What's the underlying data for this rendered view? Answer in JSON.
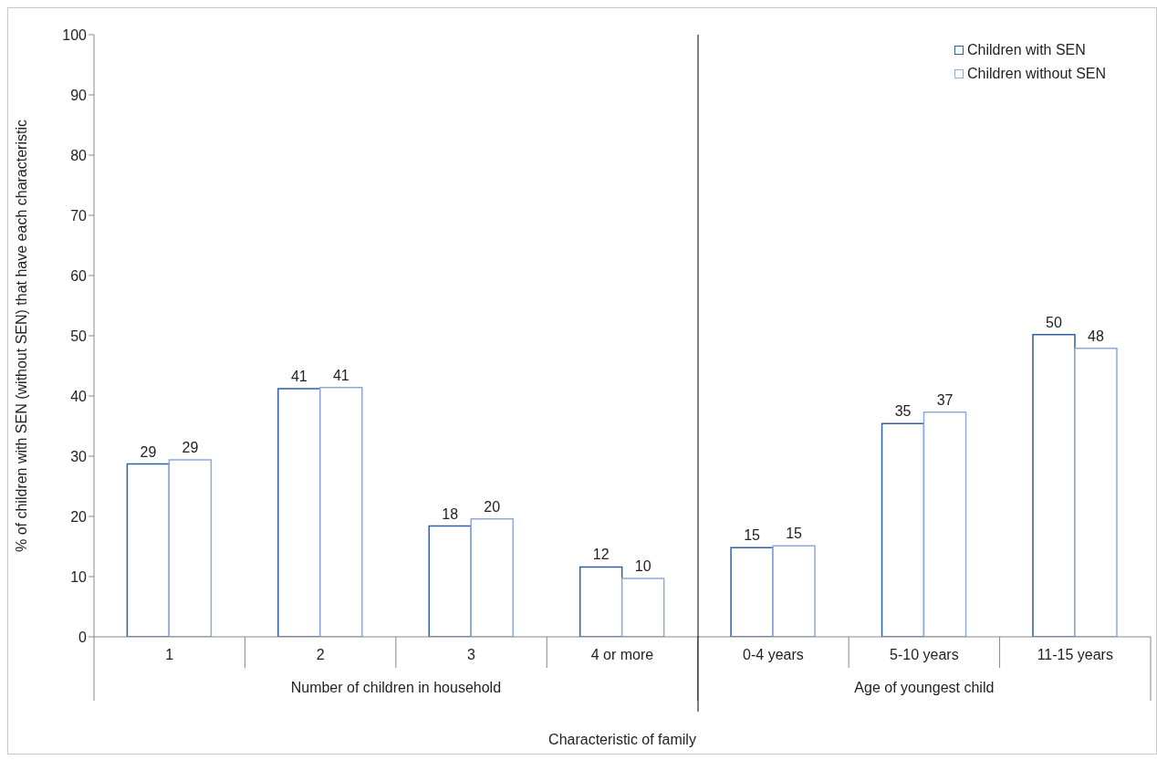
{
  "chart_data": {
    "type": "bar",
    "xlabel": "Characteristic of family",
    "ylabel": "% of children with SEN (without SEN) that have each characteristic",
    "categories": [
      "1",
      "2",
      "3",
      "4 or more",
      "0-4 years",
      "5-10 years",
      "11-15 years"
    ],
    "series": [
      {
        "name": "Children with SEN",
        "color": "#2e5fa8",
        "values": [
          28.7,
          41.2,
          18.4,
          11.6,
          14.8,
          35.4,
          50.2
        ],
        "value_labels": [
          "29",
          "41",
          "18",
          "12",
          "15",
          "35",
          "50"
        ]
      },
      {
        "name": "Children without SEN",
        "color": "#8eaadb",
        "values": [
          29.4,
          41.4,
          19.6,
          9.7,
          15.1,
          37.3,
          47.9
        ],
        "value_labels": [
          "29",
          "41",
          "20",
          "10",
          "15",
          "37",
          "48"
        ]
      }
    ],
    "annotations": [
      "Number of children in household",
      "Age of youngest child"
    ],
    "ylim": [
      0,
      100
    ],
    "yticks": [
      0,
      10,
      20,
      30,
      40,
      50,
      60,
      70,
      80,
      90,
      100
    ],
    "grid": false,
    "legend": "top right"
  }
}
